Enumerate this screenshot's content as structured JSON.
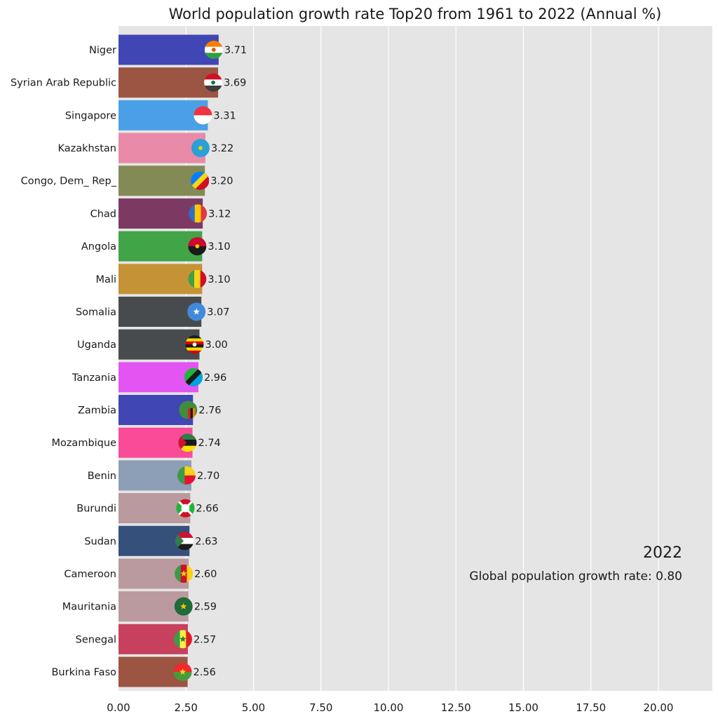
{
  "chart_data": {
    "type": "bar",
    "orientation": "horizontal",
    "title": "World population growth rate Top20 from 1961 to 2022 (Annual %)",
    "xlabel": "",
    "ylabel": "",
    "xlim": [
      0,
      22
    ],
    "xticks": [
      0,
      2.5,
      5,
      7.5,
      10,
      12.5,
      15,
      17.5,
      20
    ],
    "xtick_labels": [
      "0.00",
      "2.50",
      "5.00",
      "7.50",
      "10.00",
      "12.50",
      "15.00",
      "17.50",
      "20.00"
    ],
    "grid": true,
    "year": "2022",
    "annotation": "Global population growth rate: 0.80",
    "categories": [
      "Niger",
      "Syrian Arab Republic",
      "Singapore",
      "Kazakhstan",
      "Congo, Dem_ Rep_",
      "Chad",
      "Angola",
      "Mali",
      "Somalia",
      "Uganda",
      "Tanzania",
      "Zambia",
      "Mozambique",
      "Benin",
      "Burundi",
      "Sudan",
      "Cameroon",
      "Mauritania",
      "Senegal",
      "Burkina Faso"
    ],
    "values": [
      3.71,
      3.69,
      3.31,
      3.22,
      3.2,
      3.12,
      3.1,
      3.1,
      3.07,
      3.0,
      2.96,
      2.76,
      2.74,
      2.7,
      2.66,
      2.63,
      2.6,
      2.59,
      2.57,
      2.56
    ],
    "value_labels": [
      "3.71",
      "3.69",
      "3.31",
      "3.22",
      "3.20",
      "3.12",
      "3.10",
      "3.10",
      "3.07",
      "3.00",
      "2.96",
      "2.76",
      "2.74",
      "2.70",
      "2.66",
      "2.63",
      "2.60",
      "2.59",
      "2.57",
      "2.56"
    ],
    "bar_colors": [
      "#4046b4",
      "#9c5543",
      "#4aa0e6",
      "#e88aa8",
      "#838a55",
      "#7c3a63",
      "#41a447",
      "#c49336",
      "#484b4e",
      "#484b4e",
      "#e255f2",
      "#4046b4",
      "#fa4b98",
      "#8d9fb7",
      "#ba9a9e",
      "#35507b",
      "#ba9a9e",
      "#ba9a9e",
      "#c7415e",
      "#9c5543"
    ],
    "flag_icons": [
      "flag-niger-icon",
      "flag-syria-icon",
      "flag-singapore-icon",
      "flag-kazakhstan-icon",
      "flag-congo-dem-rep-icon",
      "flag-chad-icon",
      "flag-angola-icon",
      "flag-mali-icon",
      "flag-somalia-icon",
      "flag-uganda-icon",
      "flag-tanzania-icon",
      "flag-zambia-icon",
      "flag-mozambique-icon",
      "flag-benin-icon",
      "flag-burundi-icon",
      "flag-sudan-icon",
      "flag-cameroon-icon",
      "flag-mauritania-icon",
      "flag-senegal-icon",
      "flag-burkina-faso-icon"
    ],
    "colors": {
      "plot_background": "#e5e5e5",
      "grid": "#ffffff",
      "text": "#1a1a1a"
    }
  }
}
